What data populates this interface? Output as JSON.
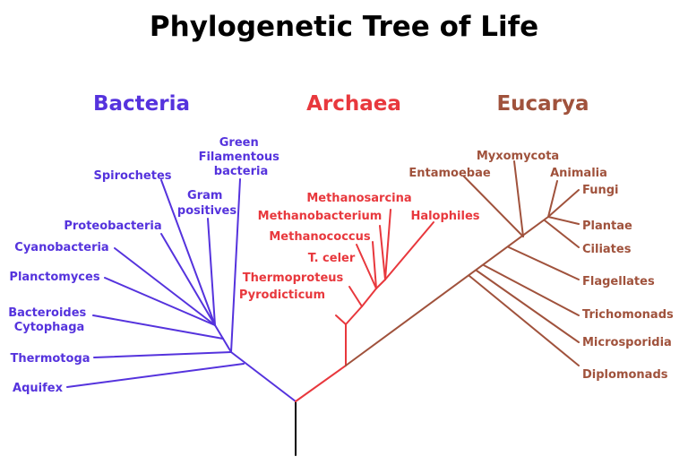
{
  "title": "Phylogenetic Tree of Life",
  "colors": {
    "bacteria": "#5533dd",
    "archaea": "#e8383d",
    "eucarya": "#a0523c",
    "root": "#000000"
  },
  "domains": {
    "bacteria": {
      "label": "Bacteria",
      "taxa": {
        "green_filamentous": [
          "Green",
          "Filamentous",
          "bacteria"
        ],
        "spirochetes": "Spirochetes",
        "gram_positives": [
          "Gram",
          "positives"
        ],
        "proteobacteria": "Proteobacteria",
        "cyanobacteria": "Cyanobacteria",
        "planctomyces": "Planctomyces",
        "bacteroides": [
          "Bacteroides",
          "Cytophaga"
        ],
        "thermotoga": "Thermotoga",
        "aquifex": "Aquifex"
      }
    },
    "archaea": {
      "label": "Archaea",
      "taxa": {
        "methanosarcina": "Methanosarcina",
        "methanobacterium": "Methanobacterium",
        "halophiles": "Halophiles",
        "methanococcus": "Methanococcus",
        "t_celer": "T. celer",
        "thermoproteus": "Thermoproteus",
        "pyrodicticum": "Pyrodicticum"
      }
    },
    "eucarya": {
      "label": "Eucarya",
      "taxa": {
        "myxomycota": "Myxomycota",
        "entamoebae": "Entamoebae",
        "animalia": "Animalia",
        "fungi": "Fungi",
        "plantae": "Plantae",
        "ciliates": "Ciliates",
        "flagellates": "Flagellates",
        "trichomonads": "Trichomonads",
        "microsporidia": "Microsporidia",
        "diplomonads": "Diplomonads"
      }
    }
  }
}
